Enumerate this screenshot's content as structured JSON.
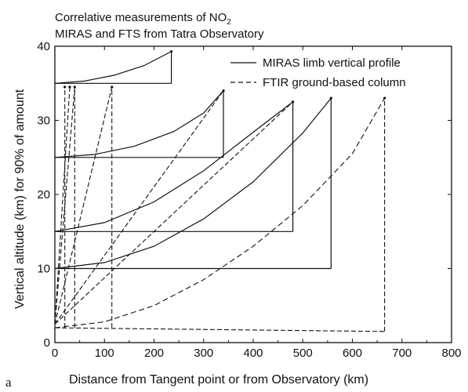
{
  "chart_data": {
    "type": "line",
    "title_line1": "Correlative measurements of NO",
    "title_sub": "2",
    "title_line2": "MIRAS and FTS from Tatra Observatory",
    "xlabel": "Distance from Tangent point or from Observatory (km)",
    "ylabel": "Vertical altitude (km) for 90% of amount",
    "panel_label": "a",
    "xlim": [
      0,
      800
    ],
    "ylim": [
      0,
      40
    ],
    "xticks": [
      0,
      100,
      200,
      300,
      400,
      500,
      600,
      700,
      800
    ],
    "yticks": [
      0,
      10,
      20,
      30,
      40
    ],
    "legend": [
      {
        "label": "MIRAS limb vertical profile",
        "style": "solid"
      },
      {
        "label": "FTIR ground-based column",
        "style": "dashed"
      }
    ],
    "legend_position": "top-right",
    "grid": false,
    "series": [
      {
        "style": "solid",
        "group": "miras",
        "x": [
          0,
          235
        ],
        "y": [
          35,
          35
        ]
      },
      {
        "style": "solid",
        "group": "miras",
        "x": [
          235,
          235
        ],
        "y": [
          35,
          39.3
        ]
      },
      {
        "style": "solid",
        "group": "miras",
        "x": [
          0,
          60,
          120,
          180,
          235
        ],
        "y": [
          35,
          35.3,
          36.1,
          37.4,
          39.3
        ]
      },
      {
        "style": "solid",
        "group": "miras",
        "x": [
          0,
          340
        ],
        "y": [
          25,
          25
        ]
      },
      {
        "style": "solid",
        "group": "miras",
        "x": [
          340,
          340
        ],
        "y": [
          25,
          34
        ]
      },
      {
        "style": "solid",
        "group": "miras",
        "x": [
          0,
          80,
          160,
          240,
          300,
          340
        ],
        "y": [
          25,
          25.4,
          26.5,
          28.5,
          31,
          34
        ]
      },
      {
        "style": "solid",
        "group": "miras",
        "x": [
          0,
          480
        ],
        "y": [
          15,
          15
        ]
      },
      {
        "style": "solid",
        "group": "miras",
        "x": [
          480,
          480
        ],
        "y": [
          15,
          32.5
        ]
      },
      {
        "style": "solid",
        "group": "miras",
        "x": [
          0,
          100,
          200,
          300,
          400,
          480
        ],
        "y": [
          15,
          16.2,
          19,
          23.2,
          28.4,
          32.5
        ]
      },
      {
        "style": "solid",
        "group": "miras",
        "x": [
          0,
          557
        ],
        "y": [
          10,
          10
        ]
      },
      {
        "style": "solid",
        "group": "miras",
        "x": [
          557,
          557
        ],
        "y": [
          10,
          33
        ]
      },
      {
        "style": "solid",
        "group": "miras",
        "x": [
          0,
          100,
          200,
          300,
          400,
          500,
          557
        ],
        "y": [
          10,
          10.8,
          13,
          16.7,
          21.7,
          28.3,
          33
        ]
      },
      {
        "style": "dashed",
        "group": "ftir",
        "x": [
          0,
          30
        ],
        "y": [
          2.5,
          34.5
        ]
      },
      {
        "style": "dashed",
        "group": "ftir",
        "x": [
          0,
          40
        ],
        "y": [
          2.5,
          34.5
        ]
      },
      {
        "style": "dashed",
        "group": "ftir",
        "x": [
          0,
          115
        ],
        "y": [
          2.5,
          34.5
        ]
      },
      {
        "style": "dashed",
        "group": "ftir",
        "x": [
          0,
          340
        ],
        "y": [
          2.5,
          34
        ]
      },
      {
        "style": "dashed",
        "group": "ftir",
        "x": [
          0,
          480
        ],
        "y": [
          2.5,
          32.5
        ]
      },
      {
        "style": "dashed",
        "group": "ftir",
        "x": [
          0,
          100,
          200,
          300,
          400,
          500,
          600,
          665
        ],
        "y": [
          2,
          2.8,
          5,
          8.5,
          13,
          18.5,
          25.5,
          33
        ]
      },
      {
        "style": "dashed",
        "group": "ftir",
        "x": [
          0,
          665
        ],
        "y": [
          2,
          1.5
        ]
      },
      {
        "style": "dashed",
        "group": "ftir",
        "x": [
          665,
          665
        ],
        "y": [
          1.5,
          33
        ]
      },
      {
        "style": "dashed",
        "group": "ftir",
        "x": [
          20,
          20
        ],
        "y": [
          2,
          34.5
        ]
      },
      {
        "style": "dashed",
        "group": "ftir",
        "x": [
          40,
          40
        ],
        "y": [
          2,
          34.5
        ]
      },
      {
        "style": "dashed",
        "group": "ftir",
        "x": [
          115,
          115
        ],
        "y": [
          2,
          34.5
        ]
      }
    ],
    "markers": [
      {
        "x": 30,
        "y": 34.5
      },
      {
        "x": 40,
        "y": 34.5
      },
      {
        "x": 115,
        "y": 34.5
      },
      {
        "x": 20,
        "y": 34.5
      },
      {
        "x": 665,
        "y": 33
      },
      {
        "x": 235,
        "y": 39.3
      },
      {
        "x": 340,
        "y": 34
      },
      {
        "x": 480,
        "y": 32.5
      },
      {
        "x": 557,
        "y": 33
      }
    ]
  }
}
